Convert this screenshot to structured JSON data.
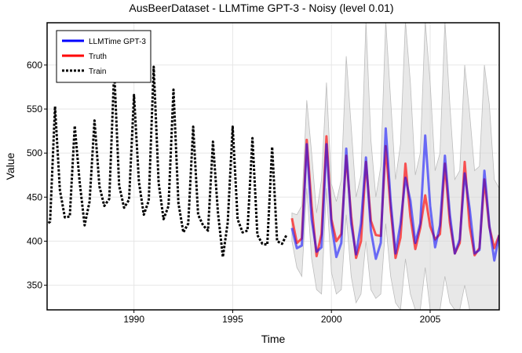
{
  "chart_data": {
    "type": "line",
    "title": "AusBeerDataset - LLMTime GPT-3 - Noisy (level 0.01)",
    "xlabel": "Time",
    "ylabel": "Value",
    "xlim": [
      1985.6,
      2008.5
    ],
    "ylim": [
      322,
      648
    ],
    "xticks": [
      1990,
      1995,
      2000,
      2005
    ],
    "yticks": [
      350,
      400,
      450,
      500,
      550,
      600
    ],
    "grid": true,
    "legend_position": "top-left",
    "colors": {
      "prediction": "#0000ff",
      "truth": "#ff0000",
      "train": "#000000",
      "band": "#d9d9d9"
    },
    "series": [
      {
        "name": "Train",
        "style": "dotted",
        "x": [
          1985.5,
          1985.75,
          1986.0,
          1986.25,
          1986.5,
          1986.75,
          1987.0,
          1987.25,
          1987.5,
          1987.75,
          1988.0,
          1988.25,
          1988.5,
          1988.75,
          1989.0,
          1989.25,
          1989.5,
          1989.75,
          1990.0,
          1990.25,
          1990.5,
          1990.75,
          1991.0,
          1991.25,
          1991.5,
          1991.75,
          1992.0,
          1992.25,
          1992.5,
          1992.75,
          1993.0,
          1993.25,
          1993.5,
          1993.75,
          1994.0,
          1994.25,
          1994.5,
          1994.75,
          1995.0,
          1995.25,
          1995.5,
          1995.75,
          1996.0,
          1996.25,
          1996.5,
          1996.75,
          1997.0,
          1997.25,
          1997.5,
          1997.75
        ],
        "values": [
          418,
          422,
          553,
          458,
          427,
          428,
          531,
          467,
          418,
          445,
          537,
          462,
          440,
          448,
          594,
          463,
          438,
          447,
          566,
          467,
          430,
          446,
          598,
          466,
          425,
          440,
          572,
          443,
          410,
          420,
          530,
          430,
          418,
          412,
          513,
          433,
          382,
          421,
          530,
          425,
          410,
          412,
          517,
          407,
          397,
          396,
          507,
          400,
          397,
          408
        ]
      },
      {
        "name": "Truth",
        "style": "solid",
        "x": [
          1998.0,
          1998.25,
          1998.5,
          1998.75,
          1999.0,
          1999.25,
          1999.5,
          1999.75,
          2000.0,
          2000.25,
          2000.5,
          2000.75,
          2001.0,
          2001.25,
          2001.5,
          2001.75,
          2002.0,
          2002.25,
          2002.5,
          2002.75,
          2003.0,
          2003.25,
          2003.5,
          2003.75,
          2004.0,
          2004.25,
          2004.5,
          2004.75,
          2005.0,
          2005.25,
          2005.5,
          2005.75,
          2006.0,
          2006.25,
          2006.5,
          2006.75,
          2007.0,
          2007.25,
          2007.5,
          2007.75,
          2008.0,
          2008.25,
          2008.5
        ],
        "values": [
          426,
          398,
          403,
          515,
          440,
          383,
          408,
          519,
          425,
          400,
          408,
          497,
          428,
          381,
          400,
          490,
          423,
          407,
          406,
          508,
          436,
          381,
          404,
          488,
          428,
          391,
          415,
          452,
          417,
          402,
          408,
          488,
          421,
          386,
          398,
          490,
          417,
          384,
          392,
          470,
          416,
          392,
          407
        ]
      },
      {
        "name": "LLMTime GPT-3",
        "style": "solid",
        "x": [
          1998.0,
          1998.25,
          1998.5,
          1998.75,
          1999.0,
          1999.25,
          1999.5,
          1999.75,
          2000.0,
          2000.25,
          2000.5,
          2000.75,
          2001.0,
          2001.25,
          2001.5,
          2001.75,
          2002.0,
          2002.25,
          2002.5,
          2002.75,
          2003.0,
          2003.25,
          2003.5,
          2003.75,
          2004.0,
          2004.25,
          2004.5,
          2004.75,
          2005.0,
          2005.25,
          2005.5,
          2005.75,
          2006.0,
          2006.25,
          2006.5,
          2006.75,
          2007.0,
          2007.25,
          2007.5,
          2007.75,
          2008.0,
          2008.25,
          2008.5
        ],
        "values": [
          415,
          392,
          395,
          510,
          425,
          388,
          393,
          510,
          420,
          382,
          398,
          505,
          420,
          385,
          420,
          495,
          412,
          380,
          398,
          528,
          445,
          386,
          420,
          472,
          446,
          398,
          420,
          520,
          440,
          393,
          418,
          497,
          430,
          386,
          402,
          477,
          437,
          386,
          390,
          480,
          418,
          378,
          407
        ]
      }
    ],
    "band": {
      "x": [
        1998.0,
        1998.25,
        1998.5,
        1998.75,
        1999.0,
        1999.25,
        1999.5,
        1999.75,
        2000.0,
        2000.25,
        2000.5,
        2000.75,
        2001.0,
        2001.25,
        2001.5,
        2001.75,
        2002.0,
        2002.25,
        2002.5,
        2002.75,
        2003.0,
        2003.25,
        2003.5,
        2003.75,
        2004.0,
        2004.25,
        2004.5,
        2004.75,
        2005.0,
        2005.25,
        2005.5,
        2005.75,
        2006.0,
        2006.25,
        2006.5,
        2006.75,
        2007.0,
        2007.25,
        2007.5,
        2007.75,
        2008.0,
        2008.25,
        2008.5
      ],
      "upper": [
        432,
        430,
        440,
        560,
        500,
        432,
        470,
        580,
        465,
        445,
        470,
        610,
        530,
        450,
        475,
        650,
        515,
        450,
        485,
        650,
        560,
        470,
        510,
        650,
        580,
        475,
        500,
        650,
        580,
        480,
        500,
        650,
        555,
        470,
        480,
        600,
        545,
        480,
        485,
        600,
        555,
        470,
        460
      ],
      "lower": [
        400,
        370,
        360,
        460,
        380,
        345,
        340,
        460,
        365,
        340,
        345,
        430,
        360,
        330,
        340,
        400,
        345,
        335,
        340,
        420,
        360,
        330,
        322,
        380,
        340,
        322,
        322,
        370,
        322,
        322,
        322,
        360,
        330,
        322,
        322,
        350,
        322,
        322,
        322,
        322,
        322,
        322,
        322
      ]
    }
  }
}
